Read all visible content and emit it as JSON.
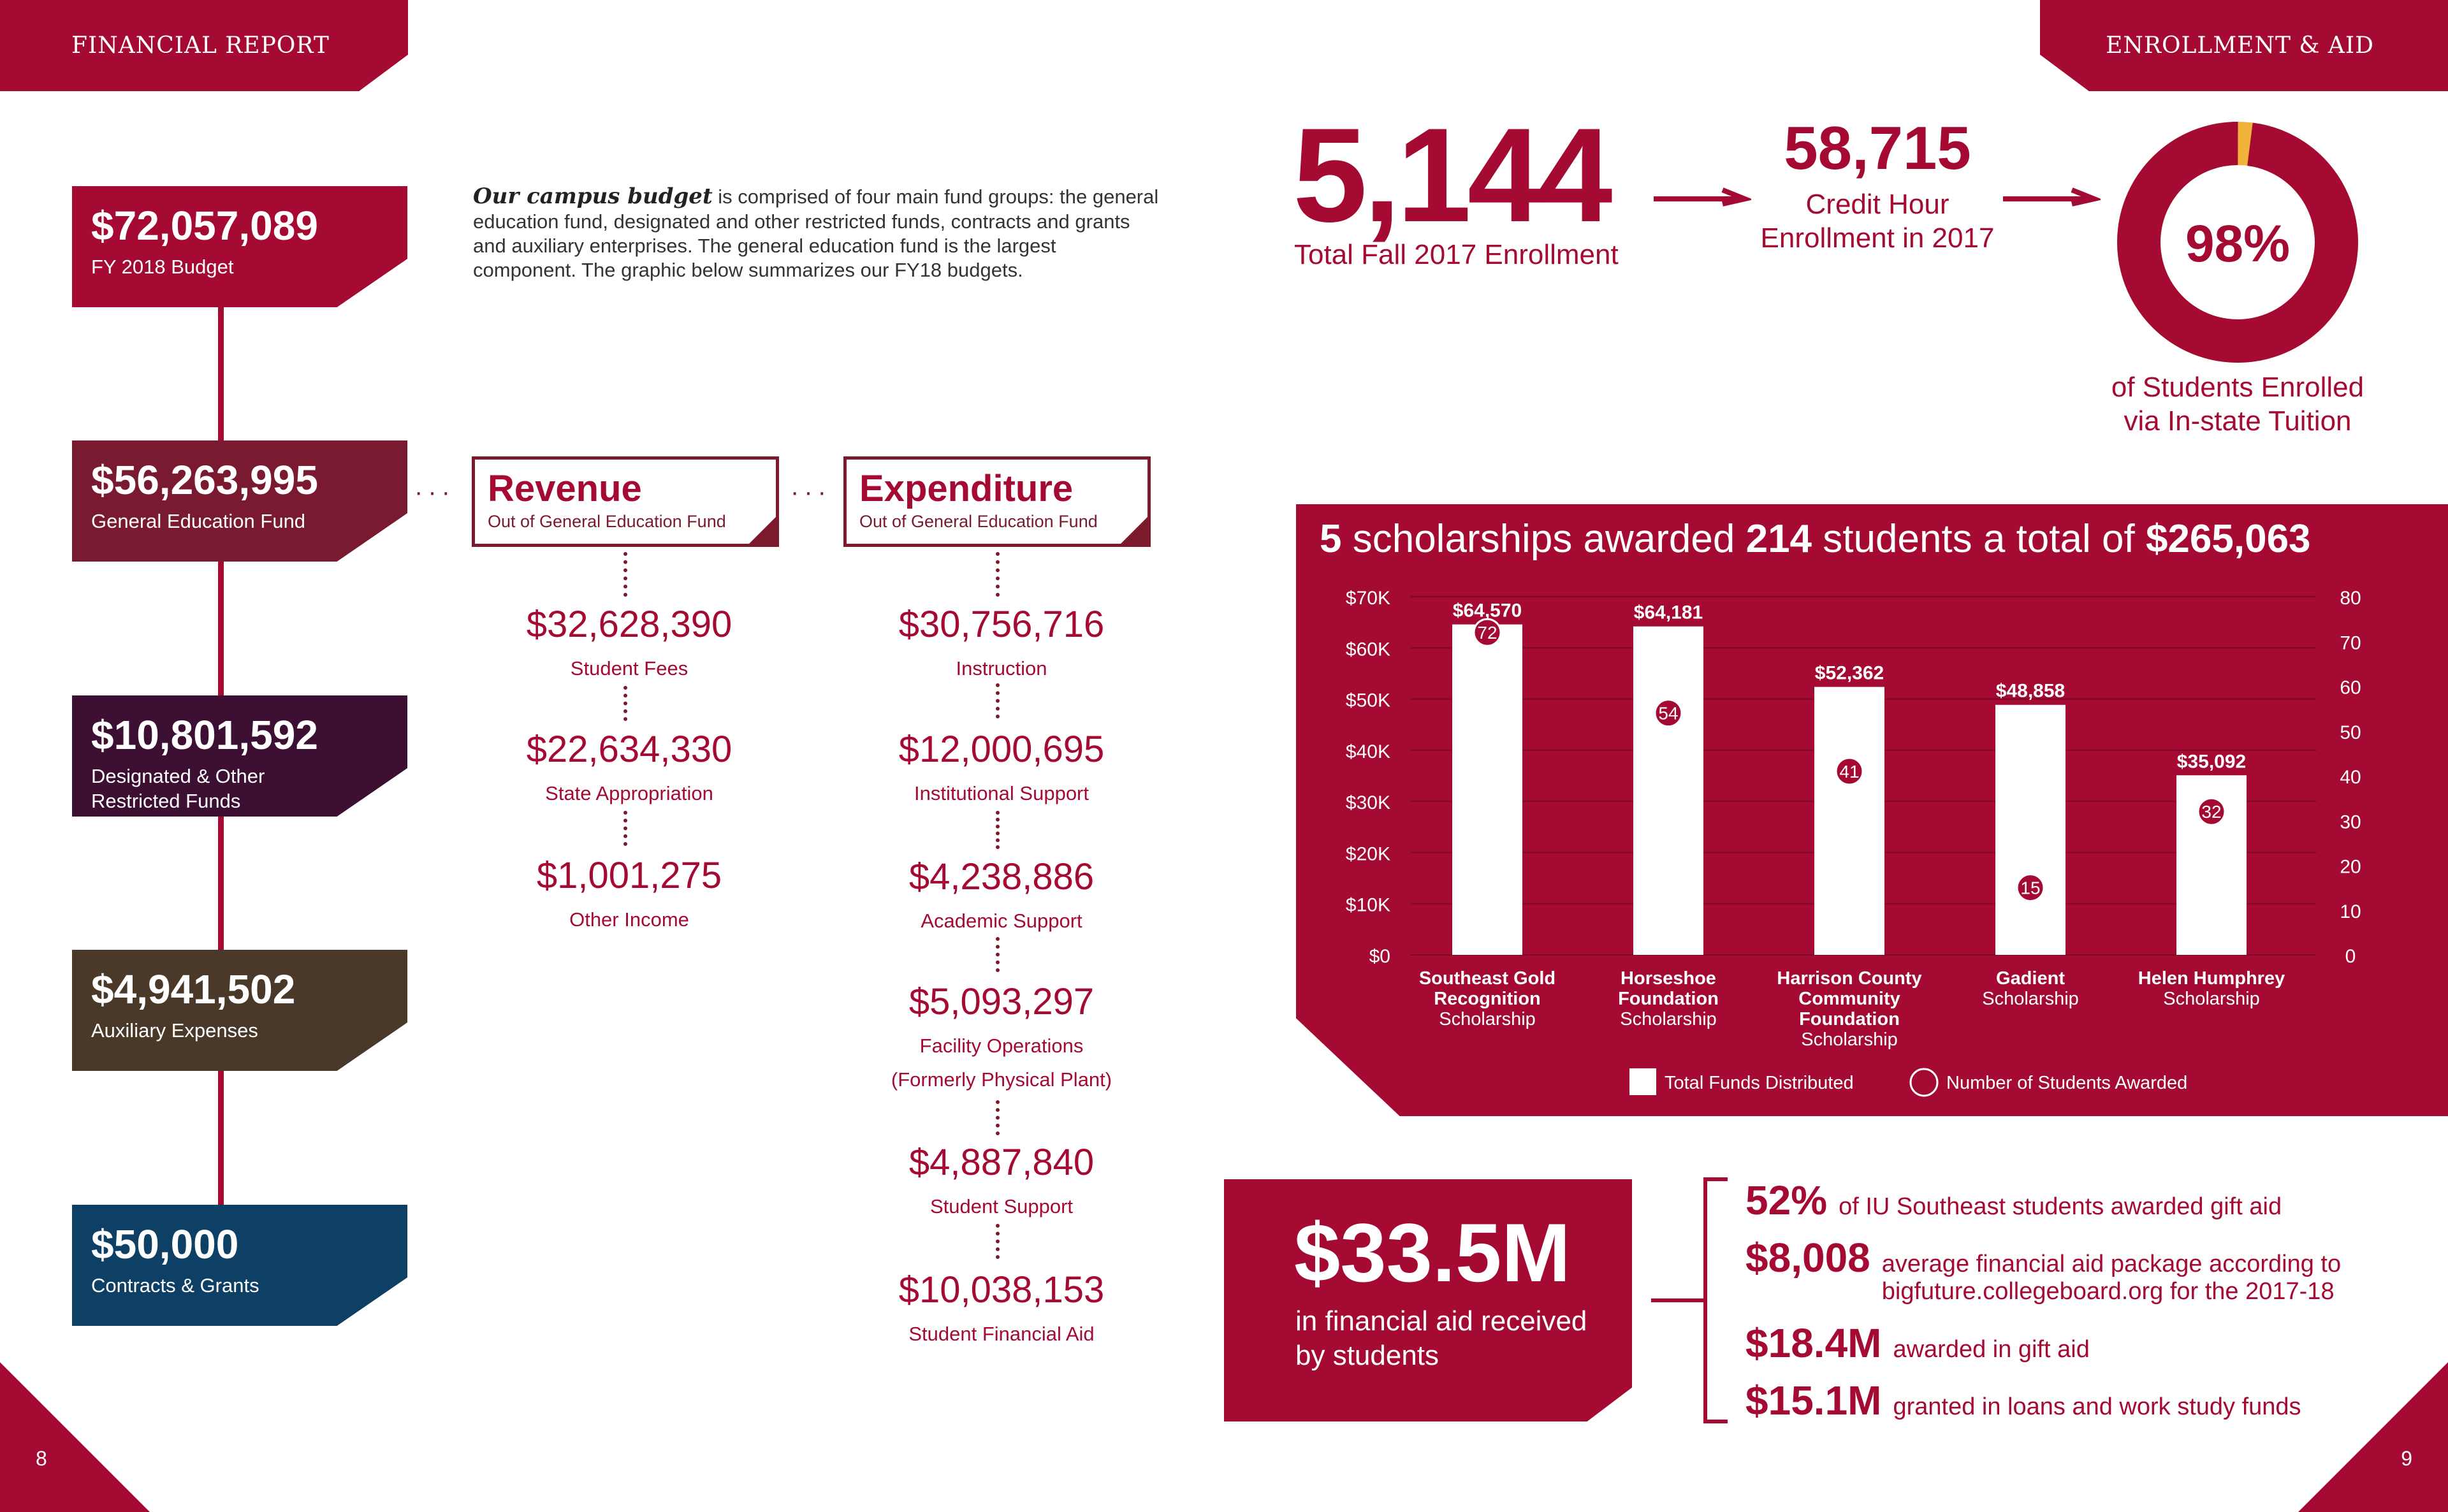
{
  "header": {
    "left": "FINANCIAL REPORT",
    "right": "ENROLLMENT & AID"
  },
  "pages": {
    "left": "8",
    "right": "9"
  },
  "funds": [
    {
      "amount": "$72,057,089",
      "label": "FY 2018 Budget",
      "color": "#a50a33"
    },
    {
      "amount": "$56,263,995",
      "label": "General Education Fund",
      "color": "#7a1a30"
    },
    {
      "amount": "$10,801,592",
      "label": "Designated & Other Restricted Funds",
      "color": "#3d0f33"
    },
    {
      "amount": "$4,941,502",
      "label": "Auxiliary Expenses",
      "color": "#4a3828"
    },
    {
      "amount": "$50,000",
      "label": "Contracts & Grants",
      "color": "#0e4066"
    }
  ],
  "intro": {
    "lead": "Our campus budget",
    "text": " is comprised of four main fund groups: the general education fund, designated and other restricted funds, contracts and grants and auxiliary enterprises. The general education fund is the largest component. The graphic below summarizes our FY18 budgets."
  },
  "revenue": {
    "title": "Revenue",
    "subtitle": "Out of General Education Fund",
    "items": [
      {
        "value": "$32,628,390",
        "label": "Student Fees"
      },
      {
        "value": "$22,634,330",
        "label": "State Appropriation"
      },
      {
        "value": "$1,001,275",
        "label": "Other Income"
      }
    ]
  },
  "expenditure": {
    "title": "Expenditure",
    "subtitle": "Out of General Education Fund",
    "items": [
      {
        "value": "$30,756,716",
        "label": "Instruction"
      },
      {
        "value": "$12,000,695",
        "label": "Institutional Support"
      },
      {
        "value": "$4,238,886",
        "label": "Academic Support"
      },
      {
        "value": "$5,093,297",
        "label": "Facility Operations",
        "label2": "(Formerly Physical Plant)"
      },
      {
        "value": "$4,887,840",
        "label": "Student Support"
      },
      {
        "value": "$10,038,153",
        "label": "Student Financial Aid"
      }
    ]
  },
  "enrollment": {
    "total": "5,144",
    "total_label": "Total Fall 2017 Enrollment",
    "credit": "58,715",
    "credit_label_1": "Credit Hour",
    "credit_label_2": "Enrollment in 2017",
    "instate_pct": "98%",
    "instate_value": 98,
    "instate_label_1": "of Students Enrolled",
    "instate_label_2": "via In-state Tuition"
  },
  "scholarships": {
    "count": "5",
    "t1": " scholarships awarded ",
    "students": "214",
    "t2": " students a total of ",
    "total": "$265,063"
  },
  "chart_data": {
    "type": "bar",
    "title": "5 scholarships awarded 214 students a total of $265,063",
    "categories": [
      "Southeast Gold Recognition Scholarship",
      "Horseshoe Foundation Scholarship",
      "Harrison County Community Foundation Scholarship",
      "Gadient Scholarship",
      "Helen Humphrey Scholarship"
    ],
    "category_lines": [
      {
        "bold": [
          "Southeast Gold",
          "Recognition"
        ],
        "normal": "Scholarship"
      },
      {
        "bold": [
          "Horseshoe",
          "Foundation"
        ],
        "normal": "Scholarship"
      },
      {
        "bold": [
          "Harrison County",
          "Community",
          "Foundation"
        ],
        "normal": "Scholarship"
      },
      {
        "bold": [
          "Gadient"
        ],
        "normal": "Scholarship"
      },
      {
        "bold": [
          "Helen Humphrey"
        ],
        "normal": "Scholarship"
      }
    ],
    "series": [
      {
        "name": "Total Funds Distributed",
        "values": [
          64570,
          64181,
          52362,
          48858,
          35092
        ],
        "labels": [
          "$64,570",
          "$64,181",
          "$52,362",
          "$48,858",
          "$35,092"
        ]
      },
      {
        "name": "Number of Students Awarded",
        "values": [
          72,
          54,
          41,
          15,
          32
        ]
      }
    ],
    "ylim_left": [
      0,
      70000
    ],
    "ylim_right": [
      0,
      80
    ],
    "left_ticks": [
      "$0",
      "$10K",
      "$20K",
      "$30K",
      "$40K",
      "$50K",
      "$60K",
      "$70K"
    ],
    "right_ticks": [
      "0",
      "10",
      "20",
      "30",
      "40",
      "50",
      "60",
      "70",
      "80"
    ],
    "grid": true,
    "legend": "bottom"
  },
  "aid": {
    "total": "$33.5M",
    "total_label_1": "in financial aid received",
    "total_label_2": "by students",
    "stats": [
      {
        "n": "52%",
        "d": "of IU Southeast students awarded gift aid"
      },
      {
        "n": "$8,008",
        "d": "average financial aid package according to",
        "d2": "bigfuture.collegeboard.org for the 2017-18"
      },
      {
        "n": "$18.4M",
        "d": "awarded in gift aid"
      },
      {
        "n": "$15.1M",
        "d": "granted in loans and work study funds"
      }
    ]
  }
}
